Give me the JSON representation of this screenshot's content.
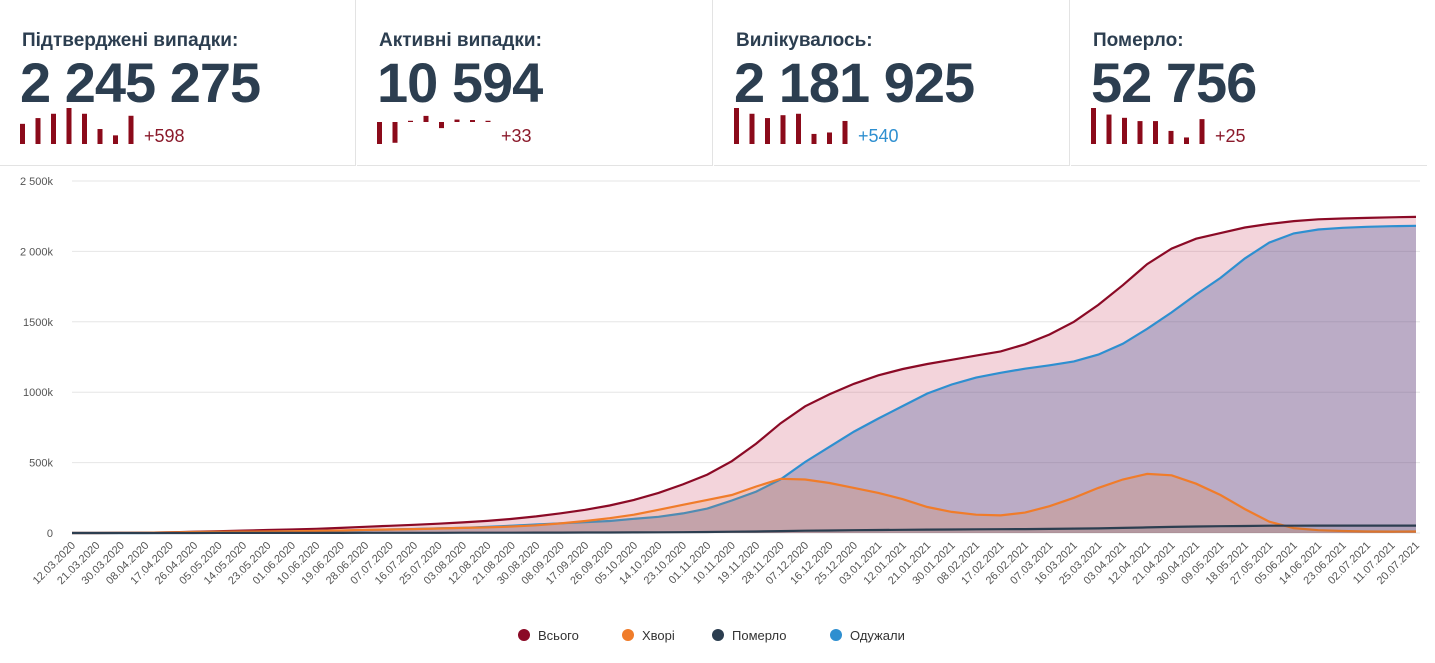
{
  "cards": [
    {
      "title": "Підтверджені випадки:",
      "value": "2 245 275",
      "delta": "+598",
      "delta_color": "#8b1a2b",
      "spark": [
        700,
        900,
        1050,
        1250,
        1050,
        520,
        300,
        980
      ]
    },
    {
      "title": "Активні випадки:",
      "value": "10 594",
      "delta": "+33",
      "delta_color": "#8b1a2b",
      "spark": [
        -90,
        -85,
        5,
        25,
        -25,
        10,
        8,
        5
      ]
    },
    {
      "title": "Вилікувалось:",
      "value": "2 181 925",
      "delta": "+540",
      "delta_color": "#2e8fd0",
      "spark": [
        1250,
        1050,
        900,
        1000,
        1050,
        350,
        400,
        800
      ]
    },
    {
      "title": "Померло:",
      "value": "52 756",
      "delta": "+25",
      "delta_color": "#8b1a2b",
      "spark": [
        55,
        45,
        40,
        35,
        35,
        20,
        10,
        38
      ]
    }
  ],
  "chart_data": {
    "type": "area",
    "categories": [
      "12.03.2020",
      "21.03.2020",
      "30.03.2020",
      "08.04.2020",
      "17.04.2020",
      "26.04.2020",
      "05.05.2020",
      "14.05.2020",
      "23.05.2020",
      "01.06.2020",
      "10.06.2020",
      "19.06.2020",
      "28.06.2020",
      "07.07.2020",
      "16.07.2020",
      "25.07.2020",
      "03.08.2020",
      "12.08.2020",
      "21.08.2020",
      "30.08.2020",
      "08.09.2020",
      "17.09.2020",
      "26.09.2020",
      "05.10.2020",
      "14.10.2020",
      "23.10.2020",
      "01.11.2020",
      "10.11.2020",
      "19.11.2020",
      "28.11.2020",
      "07.12.2020",
      "16.12.2020",
      "25.12.2020",
      "03.01.2021",
      "12.01.2021",
      "21.01.2021",
      "30.01.2021",
      "08.02.2021",
      "17.02.2021",
      "26.02.2021",
      "07.03.2021",
      "16.03.2021",
      "25.03.2021",
      "03.04.2021",
      "12.04.2021",
      "21.04.2021",
      "30.04.2021",
      "09.05.2021",
      "18.05.2021",
      "27.05.2021",
      "05.06.2021",
      "14.06.2021",
      "23.06.2021",
      "02.07.2021",
      "11.07.2021",
      "20.07.2021"
    ],
    "series": [
      {
        "name": "Всього",
        "color": "#8b0a26",
        "values": [
          0,
          100,
          1000,
          2000,
          5000,
          9000,
          13000,
          17000,
          21000,
          25000,
          30000,
          36000,
          44000,
          51000,
          58000,
          66000,
          75000,
          86000,
          100000,
          118000,
          140000,
          165000,
          195000,
          235000,
          285000,
          345000,
          415000,
          510000,
          635000,
          780000,
          900000,
          985000,
          1060000,
          1120000,
          1165000,
          1200000,
          1230000,
          1260000,
          1290000,
          1340000,
          1410000,
          1500000,
          1620000,
          1760000,
          1910000,
          2020000,
          2090000,
          2130000,
          2170000,
          2195000,
          2215000,
          2228000,
          2234000,
          2238000,
          2242000,
          2245275
        ]
      },
      {
        "name": "Хворі",
        "color": "#f07c2a",
        "values": [
          0,
          100,
          1000,
          2000,
          4000,
          7000,
          9000,
          10000,
          11000,
          13000,
          15000,
          18000,
          22000,
          25000,
          28000,
          32000,
          36000,
          40000,
          46000,
          55000,
          68000,
          85000,
          105000,
          130000,
          165000,
          200000,
          235000,
          270000,
          330000,
          385000,
          380000,
          355000,
          320000,
          285000,
          240000,
          185000,
          150000,
          130000,
          125000,
          145000,
          190000,
          250000,
          320000,
          380000,
          420000,
          410000,
          350000,
          270000,
          170000,
          80000,
          35000,
          20000,
          14000,
          11000,
          10000,
          10594
        ]
      },
      {
        "name": "Померло",
        "color": "#2c3e50",
        "values": [
          0,
          0,
          0,
          0,
          200,
          300,
          400,
          500,
          600,
          800,
          900,
          1000,
          1100,
          1300,
          1500,
          1600,
          1800,
          2000,
          2200,
          2500,
          2800,
          3200,
          3600,
          4200,
          5000,
          6000,
          7000,
          9000,
          11000,
          13500,
          16000,
          18000,
          20000,
          21500,
          23000,
          24000,
          25000,
          26000,
          27000,
          28000,
          29000,
          31000,
          33000,
          36000,
          40000,
          43000,
          46000,
          48000,
          50000,
          51500,
          52000,
          52400,
          52500,
          52600,
          52700,
          52756
        ]
      },
      {
        "name": "Одужали",
        "color": "#2e8fd0",
        "values": [
          0,
          0,
          0,
          0,
          800,
          1700,
          3600,
          6500,
          9400,
          11200,
          14100,
          17000,
          20900,
          24700,
          28500,
          32400,
          37200,
          44000,
          51800,
          60500,
          69200,
          76800,
          85400,
          100800,
          115000,
          139000,
          173000,
          231000,
          294000,
          381500,
          504000,
          612000,
          720000,
          813500,
          902000,
          991000,
          1055000,
          1104000,
          1138000,
          1167000,
          1191000,
          1219000,
          1267000,
          1344000,
          1450000,
          1567000,
          1694000,
          1812000,
          1950000,
          2063500,
          2128000,
          2155600,
          2167500,
          2174400,
          2179300,
          2181925
        ]
      }
    ],
    "ylim": [
      0,
      2500000
    ],
    "yticks": [
      0,
      {
        "value": 500000,
        "label": "500k"
      },
      {
        "value": 1000000,
        "label": "1000k"
      },
      {
        "value": 1500000,
        "label": "1500k"
      },
      {
        "value": 2000000,
        "label": "2 000k"
      },
      {
        "value": 2500000,
        "label": "2 500k"
      }
    ],
    "grid": true,
    "legend": "bottom"
  }
}
